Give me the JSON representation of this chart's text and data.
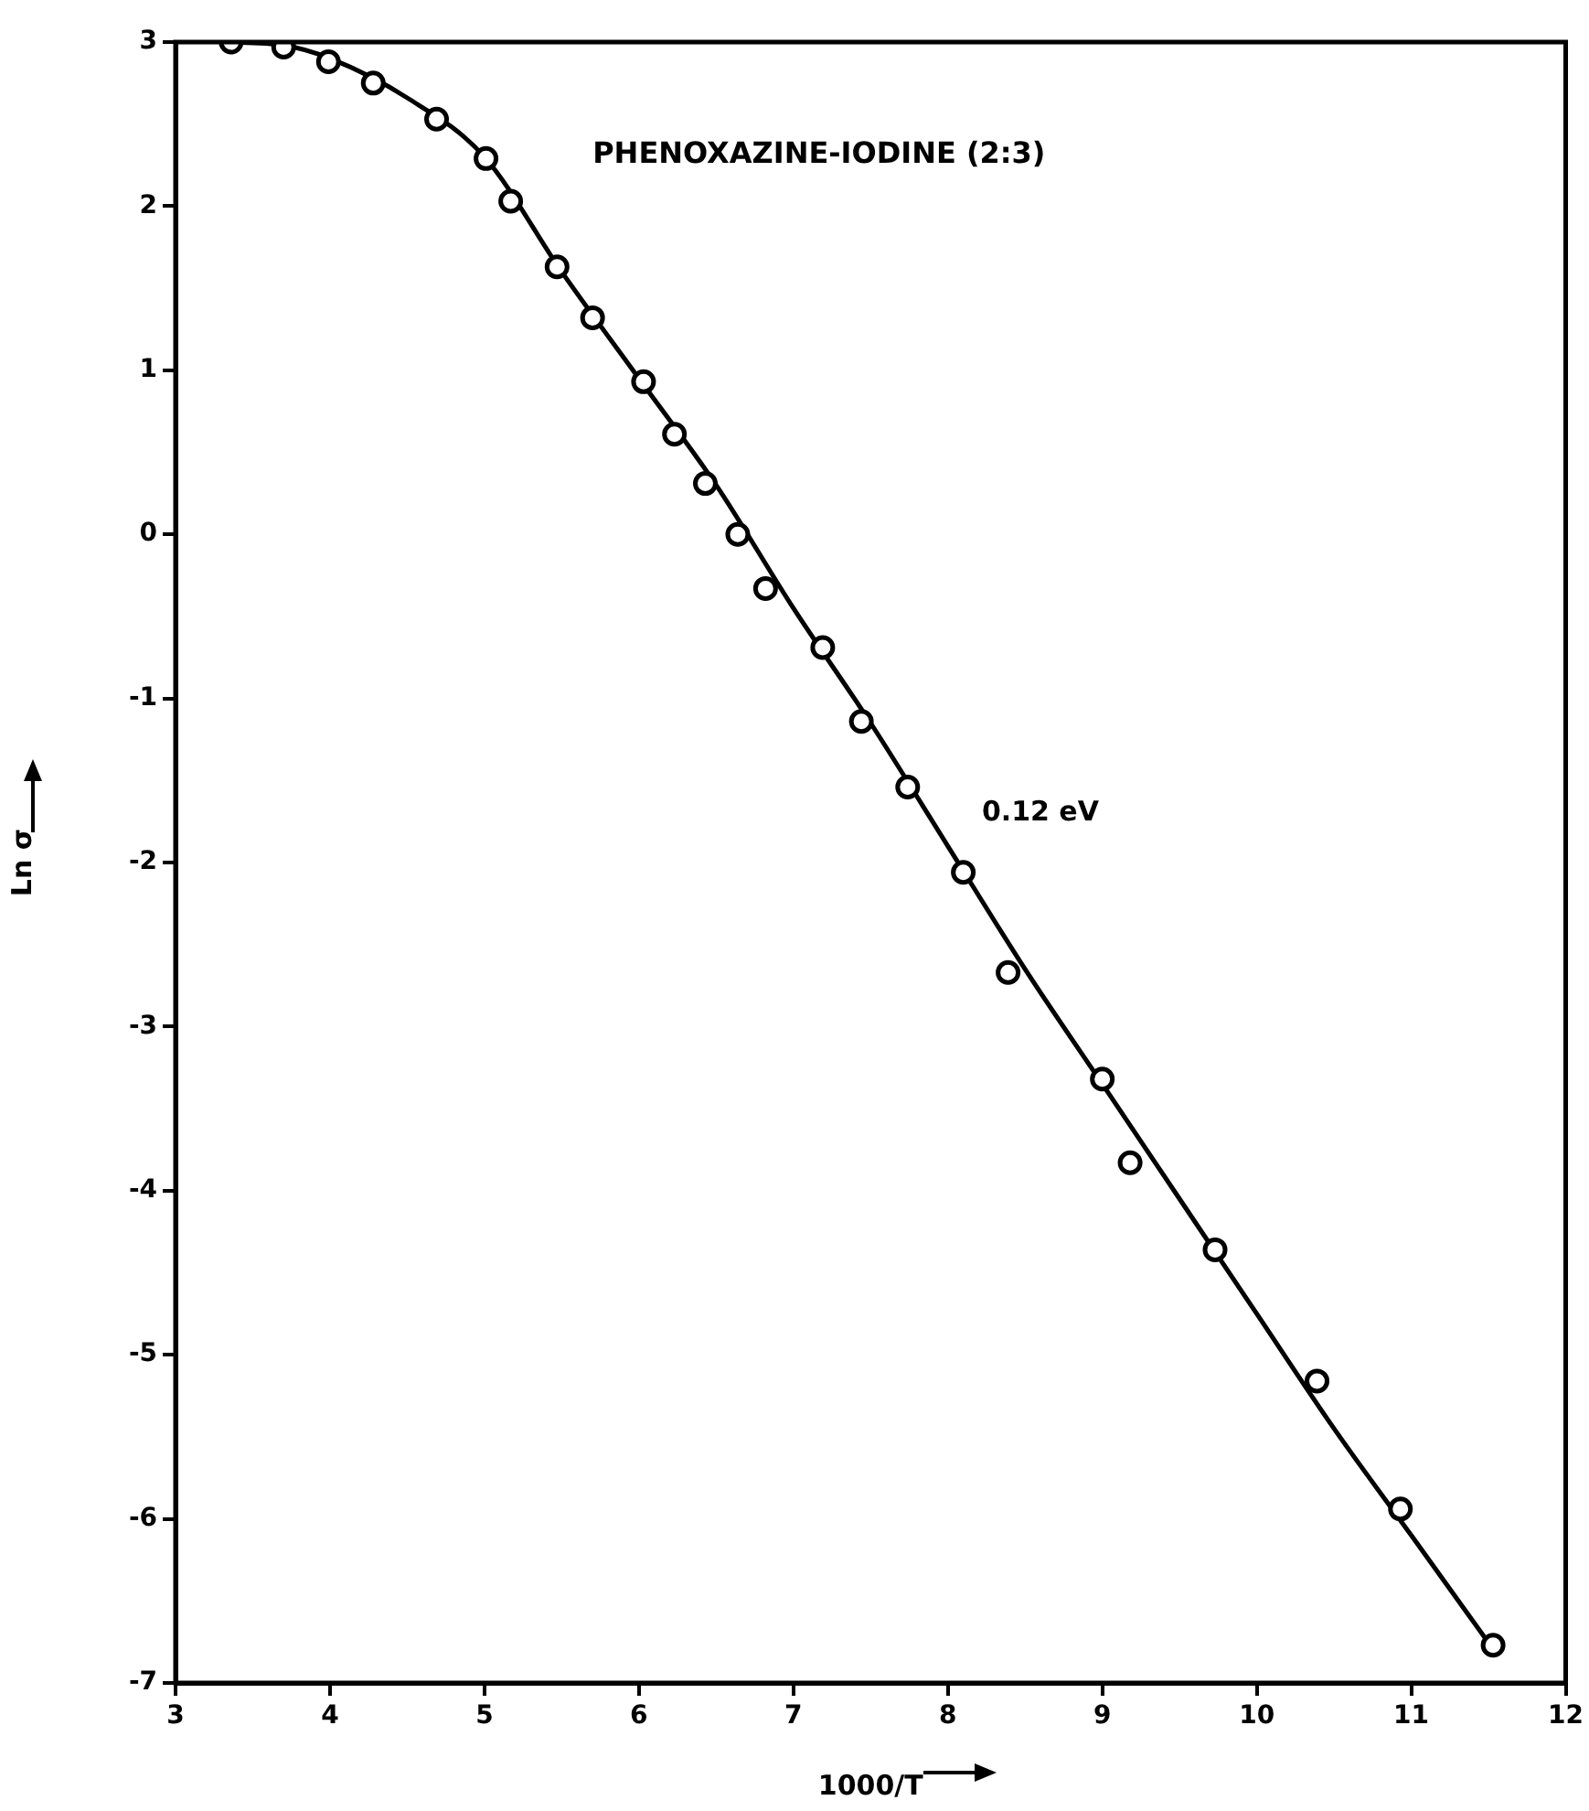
{
  "chart_data": {
    "type": "scatter",
    "title": "PHENOXAZINE-IODINE (2:3)",
    "xlabel": "1000/T",
    "ylabel": "Ln σ",
    "xlim": [
      3,
      12
    ],
    "ylim": [
      -7,
      3
    ],
    "xticks": [
      3,
      4,
      5,
      6,
      7,
      8,
      9,
      10,
      11,
      12
    ],
    "yticks": [
      -7,
      -6,
      -5,
      -4,
      -3,
      -2,
      -1,
      0,
      1,
      2,
      3
    ],
    "grid": false,
    "legend": false,
    "line_style": "solid",
    "annotations": [
      "0.12 eV"
    ],
    "series": [
      {
        "marker": "circle",
        "color": "#000000",
        "x": [
          3.36,
          3.7,
          3.99,
          4.28,
          4.69,
          5.01,
          5.17,
          5.47,
          5.7,
          6.03,
          6.23,
          6.43,
          6.64,
          6.82,
          7.19,
          7.44,
          7.74,
          8.1,
          8.39,
          9.0,
          9.18,
          9.73,
          10.39,
          10.93,
          11.53
        ],
        "values": [
          3.0,
          2.97,
          2.88,
          2.75,
          2.53,
          2.29,
          2.03,
          1.63,
          1.32,
          0.93,
          0.61,
          0.31,
          0.0,
          -0.33,
          -0.69,
          -1.14,
          -1.54,
          -2.06,
          -2.67,
          -3.32,
          -3.83,
          -4.36,
          -5.16,
          -5.94,
          -6.77
        ]
      },
      {
        "type": "line",
        "marker": "none",
        "color": "#000000",
        "x": [
          3.3,
          3.7,
          4.0,
          4.5,
          5.0,
          5.5,
          6.0,
          6.5,
          7.0,
          7.5,
          8.0,
          8.5,
          9.0,
          9.5,
          10.0,
          10.5,
          11.0,
          11.55
        ],
        "values": [
          3.0,
          2.98,
          2.9,
          2.66,
          2.3,
          1.6,
          0.95,
          0.3,
          -0.45,
          -1.15,
          -1.9,
          -2.65,
          -3.35,
          -4.05,
          -4.75,
          -5.45,
          -6.1,
          -6.82
        ]
      }
    ]
  }
}
